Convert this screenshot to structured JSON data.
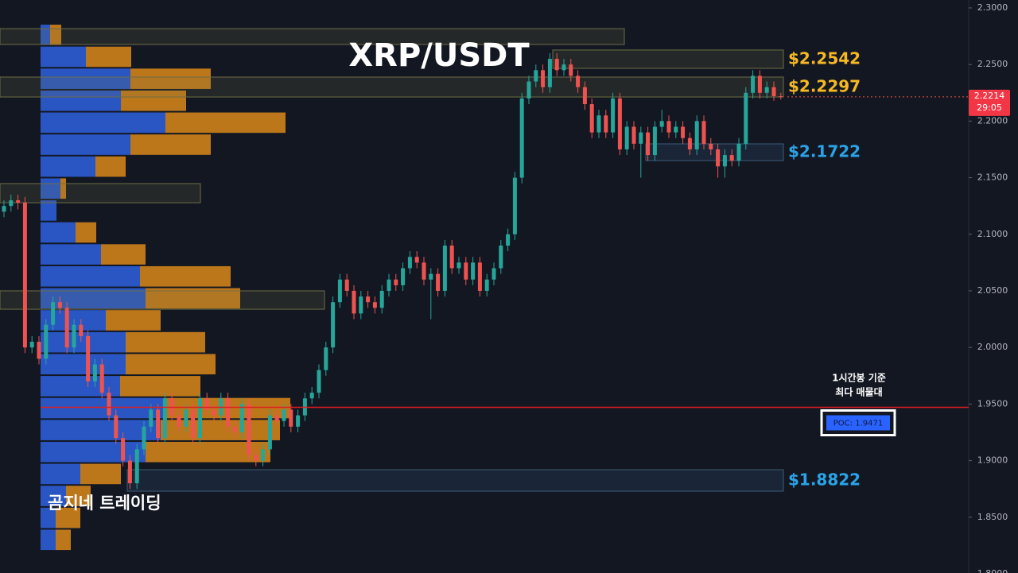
{
  "chart_data": {
    "type": "candlestick",
    "title": "XRP/USDT",
    "watermark": "곰지네 트레이딩",
    "up_color": "#26a69a",
    "down_color": "#ef5350",
    "ylim": [
      1.8007,
      2.307
    ],
    "yticks": [
      {
        "value": 1.8,
        "label": "1.8000"
      },
      {
        "value": 1.85,
        "label": "1.8500"
      },
      {
        "value": 1.9,
        "label": "1.9000"
      },
      {
        "value": 1.95,
        "label": "1.9500"
      },
      {
        "value": 2.0,
        "label": "2.0000"
      },
      {
        "value": 2.05,
        "label": "2.0500"
      },
      {
        "value": 2.1,
        "label": "2.1000"
      },
      {
        "value": 2.15,
        "label": "2.1500"
      },
      {
        "value": 2.2,
        "label": "2.2000"
      },
      {
        "value": 2.25,
        "label": "2.2500"
      },
      {
        "value": 2.3,
        "label": "2.3000"
      }
    ],
    "open": [
      2.12,
      2.125,
      2.13,
      2.128,
      2.0,
      2.005,
      1.99,
      2.02,
      2.04,
      2.035,
      2.0,
      2.02,
      2.01,
      1.97,
      1.985,
      1.96,
      1.94,
      1.92,
      1.9,
      1.88,
      1.91,
      1.93,
      1.945,
      1.92,
      1.955,
      1.94,
      1.93,
      1.945,
      1.92,
      1.955,
      1.945,
      1.94,
      1.955,
      1.93,
      1.925,
      1.95,
      1.905,
      1.9,
      1.91,
      1.94,
      1.935,
      1.945,
      1.93,
      1.94,
      1.955,
      1.96,
      1.98,
      2.0,
      2.04,
      2.06,
      2.05,
      2.03,
      2.045,
      2.04,
      2.035,
      2.05,
      2.06,
      2.055,
      2.07,
      2.08,
      2.075,
      2.06,
      2.065,
      2.05,
      2.09,
      2.07,
      2.075,
      2.06,
      2.075,
      2.05,
      2.06,
      2.07,
      2.09,
      2.1,
      2.15,
      2.22,
      2.235,
      2.245,
      2.23,
      2.255,
      2.245,
      2.25,
      2.24,
      2.23,
      2.215,
      2.19,
      2.205,
      2.19,
      2.22,
      2.175,
      2.195,
      2.18,
      2.19,
      2.17,
      2.195,
      2.2,
      2.19,
      2.195,
      2.185,
      2.175,
      2.2,
      2.18,
      2.175,
      2.16,
      2.17,
      2.165,
      2.18,
      2.225,
      2.24,
      2.225,
      2.23,
      2.222
    ],
    "high": [
      2.13,
      2.135,
      2.135,
      2.133,
      2.01,
      2.01,
      2.025,
      2.045,
      2.045,
      2.04,
      2.025,
      2.025,
      2.015,
      1.99,
      1.99,
      1.965,
      1.945,
      1.925,
      1.905,
      1.915,
      1.935,
      1.95,
      1.95,
      1.96,
      1.96,
      1.945,
      1.95,
      1.95,
      1.96,
      1.96,
      1.95,
      1.96,
      1.96,
      1.935,
      1.955,
      1.955,
      1.91,
      1.915,
      1.945,
      1.945,
      1.95,
      1.95,
      1.945,
      1.96,
      1.965,
      1.985,
      2.005,
      2.045,
      2.065,
      2.065,
      2.055,
      2.05,
      2.05,
      2.045,
      2.055,
      2.065,
      2.065,
      2.075,
      2.085,
      2.085,
      2.08,
      2.07,
      2.07,
      2.095,
      2.095,
      2.08,
      2.08,
      2.08,
      2.08,
      2.065,
      2.075,
      2.095,
      2.105,
      2.155,
      2.225,
      2.24,
      2.25,
      2.25,
      2.26,
      2.26,
      2.255,
      2.255,
      2.245,
      2.235,
      2.22,
      2.21,
      2.21,
      2.225,
      2.225,
      2.2,
      2.2,
      2.195,
      2.195,
      2.2,
      2.21,
      2.205,
      2.2,
      2.2,
      2.19,
      2.205,
      2.205,
      2.185,
      2.18,
      2.175,
      2.175,
      2.185,
      2.23,
      2.245,
      2.245,
      2.235,
      2.235,
      2.225
    ],
    "low": [
      2.115,
      2.12,
      2.122,
      1.995,
      1.995,
      1.985,
      1.985,
      2.015,
      2.03,
      1.995,
      1.995,
      2.005,
      1.965,
      1.965,
      1.955,
      1.935,
      1.915,
      1.895,
      1.875,
      1.875,
      1.905,
      1.925,
      1.915,
      1.915,
      1.935,
      1.925,
      1.925,
      1.915,
      1.915,
      1.94,
      1.935,
      1.935,
      1.925,
      1.92,
      1.92,
      1.9,
      1.895,
      1.895,
      1.905,
      1.93,
      1.93,
      1.925,
      1.925,
      1.935,
      1.95,
      1.955,
      1.975,
      1.995,
      2.035,
      2.045,
      2.025,
      2.025,
      2.035,
      2.03,
      2.03,
      2.045,
      2.05,
      2.05,
      2.065,
      2.07,
      2.055,
      2.025,
      2.045,
      2.045,
      2.065,
      2.065,
      2.055,
      2.055,
      2.045,
      2.045,
      2.055,
      2.065,
      2.085,
      2.095,
      2.145,
      2.215,
      2.23,
      2.225,
      2.225,
      2.24,
      2.24,
      2.235,
      2.225,
      2.21,
      2.185,
      2.185,
      2.185,
      2.185,
      2.17,
      2.17,
      2.175,
      2.15,
      2.165,
      2.165,
      2.19,
      2.185,
      2.185,
      2.18,
      2.17,
      2.17,
      2.175,
      2.17,
      2.15,
      2.15,
      2.16,
      2.16,
      2.175,
      2.22,
      2.22,
      2.22,
      2.218,
      2.219
    ],
    "close": [
      2.125,
      2.13,
      2.128,
      2.0,
      2.005,
      1.99,
      2.02,
      2.04,
      2.035,
      2.0,
      2.02,
      2.01,
      1.97,
      1.985,
      1.96,
      1.94,
      1.92,
      1.9,
      1.88,
      1.91,
      1.93,
      1.945,
      1.92,
      1.955,
      1.94,
      1.93,
      1.945,
      1.92,
      1.955,
      1.945,
      1.94,
      1.955,
      1.93,
      1.925,
      1.95,
      1.905,
      1.9,
      1.91,
      1.94,
      1.935,
      1.945,
      1.93,
      1.94,
      1.955,
      1.96,
      1.98,
      2.0,
      2.04,
      2.06,
      2.05,
      2.03,
      2.045,
      2.04,
      2.035,
      2.05,
      2.06,
      2.055,
      2.07,
      2.08,
      2.075,
      2.06,
      2.065,
      2.05,
      2.09,
      2.07,
      2.075,
      2.06,
      2.075,
      2.05,
      2.06,
      2.07,
      2.09,
      2.1,
      2.15,
      2.22,
      2.235,
      2.245,
      2.23,
      2.255,
      2.245,
      2.25,
      2.24,
      2.23,
      2.215,
      2.19,
      2.205,
      2.19,
      2.22,
      2.175,
      2.195,
      2.18,
      2.19,
      2.17,
      2.195,
      2.2,
      2.19,
      2.195,
      2.185,
      2.175,
      2.2,
      2.18,
      2.175,
      2.16,
      2.17,
      2.165,
      2.18,
      2.225,
      2.24,
      2.225,
      2.23,
      2.222,
      2.2214
    ],
    "timer": "29:05",
    "profile": {
      "bins": [
        2.2859,
        2.2665,
        2.2471,
        2.2277,
        2.2083,
        2.1889,
        2.1695,
        2.1501,
        2.1307,
        2.1113,
        2.0919,
        2.0725,
        2.0531,
        2.0337,
        2.0143,
        1.9949,
        1.9755,
        1.9561,
        1.9367,
        1.9173,
        1.8979,
        1.8785,
        1.8591,
        1.8397,
        1.8203
      ],
      "buy": [
        12,
        57,
        113,
        101,
        157,
        113,
        69,
        25,
        20,
        44,
        76,
        125,
        132,
        82,
        107,
        107,
        100,
        157,
        151,
        132,
        50,
        32,
        19,
        19
      ],
      "sell": [
        14,
        57,
        101,
        82,
        151,
        101,
        38,
        7,
        0,
        26,
        56,
        114,
        119,
        69,
        100,
        113,
        101,
        157,
        150,
        157,
        51,
        31,
        31,
        19
      ],
      "buy_color": "#2f62e0",
      "sell_color": "#e8901a"
    },
    "zones": [
      {
        "top": 2.2817,
        "bottom": 2.2677,
        "color": "#8a8a4a"
      },
      {
        "top": 2.2628,
        "bottom": 2.2466,
        "value": 2.2542,
        "label": "$2.2542",
        "color": "#f5b922"
      },
      {
        "top": 2.2389,
        "bottom": 2.2213,
        "value": 2.2297,
        "label": "$2.2297",
        "color": "#f5b922"
      },
      {
        "top": 2.1799,
        "bottom": 2.1651,
        "value": 2.1722,
        "label": "$2.1722",
        "color": "#2aa3e8"
      },
      {
        "top": 2.1448,
        "bottom": 2.1279,
        "color": "#8a8a4a"
      },
      {
        "top": 2.05,
        "bottom": 2.0338,
        "color": "#8a8a4a"
      },
      {
        "top": 1.892,
        "bottom": 1.873,
        "value": 1.8822,
        "label": "$1.8822",
        "color": "#2aa3e8"
      }
    ],
    "poc": {
      "value": 1.9471,
      "label": "POC: 1.9471"
    },
    "annotation": [
      "1시간봉 기준",
      "최다 매물대"
    ]
  }
}
